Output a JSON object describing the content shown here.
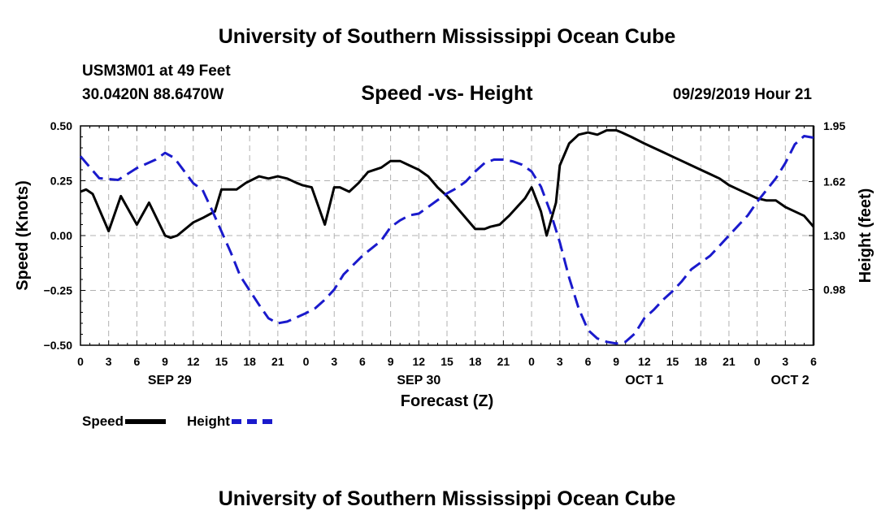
{
  "page": {
    "top_title": "University of Southern Mississippi Ocean Cube",
    "bottom_title": "University of Southern Mississippi Ocean Cube",
    "station_name": "USM3M01 at 49 Feet",
    "station_coords": "30.0420N 88.6470W",
    "chart_title": "Speed -vs- Height",
    "date_label": "09/29/2019 Hour 21"
  },
  "colors": {
    "speed": "#000000",
    "height": "#1a1acc",
    "grid": "#b0b0b0"
  },
  "chart_data": {
    "type": "line",
    "title": "Speed -vs- Height",
    "xlabel": "Forecast (Z)",
    "ylabel": "Speed (Knots)",
    "y2label": "Height (feet)",
    "x_unit": "hours since 09/29 00Z",
    "xlim": [
      0,
      78
    ],
    "ylim": [
      -0.5,
      0.5
    ],
    "y2lim": [
      0.65,
      1.95
    ],
    "yticks": [
      -0.5,
      -0.25,
      0,
      0.25,
      0.5
    ],
    "ytick_labels": [
      "−0.50",
      "−0.25",
      "0.00",
      "0.25",
      "0.50"
    ],
    "y2ticks": [
      0.98,
      1.3,
      1.62,
      1.95
    ],
    "y2tick_labels": [
      "0.98",
      "1.30",
      "1.62",
      "1.95"
    ],
    "xticks": [
      0,
      3,
      6,
      9,
      12,
      15,
      18,
      21,
      24,
      27,
      30,
      33,
      36,
      39,
      42,
      45,
      48,
      51,
      54,
      57,
      60,
      63,
      66,
      69,
      72,
      75,
      78
    ],
    "xtick_labels": [
      "0",
      "3",
      "6",
      "9",
      "12",
      "15",
      "18",
      "21",
      "0",
      "3",
      "6",
      "9",
      "12",
      "15",
      "18",
      "21",
      "0",
      "3",
      "6",
      "9",
      "12",
      "15",
      "18",
      "21",
      "0",
      "3",
      "6"
    ],
    "date_labels": [
      {
        "label": "SEP 29",
        "x": 9.5
      },
      {
        "label": "SEP 30",
        "x": 36
      },
      {
        "label": "OCT 1",
        "x": 60
      },
      {
        "label": "OCT 2",
        "x": 75.5
      }
    ],
    "grid": true,
    "legend": "bottom-left",
    "series": [
      {
        "name": "Speed",
        "axis": "left",
        "style": "solid",
        "x": [
          0,
          0.6,
          1.3,
          3,
          4.3,
          6,
          7.3,
          9,
          9.6,
          10.3,
          12,
          13,
          14.3,
          15,
          16.6,
          17.6,
          19,
          20,
          21,
          22,
          23,
          23.6,
          24.6,
          26,
          27,
          27.6,
          28.6,
          29.6,
          30.6,
          32,
          33,
          34,
          35,
          36,
          37,
          38,
          39,
          40,
          42,
          43,
          43.6,
          44.6,
          45.6,
          47.3,
          48,
          49,
          49.6,
          50.6,
          51,
          52,
          53,
          54,
          55,
          56,
          57,
          57.6,
          58.6,
          60,
          61,
          62,
          63,
          64,
          65,
          66,
          67,
          68,
          69,
          70,
          71,
          72,
          73,
          74,
          75,
          76,
          77,
          77.6,
          78
        ],
        "values": [
          0.2,
          0.21,
          0.19,
          0.02,
          0.18,
          0.05,
          0.15,
          0,
          -0.01,
          0,
          0.06,
          0.08,
          0.11,
          0.21,
          0.21,
          0.24,
          0.27,
          0.26,
          0.27,
          0.26,
          0.24,
          0.23,
          0.22,
          0.05,
          0.22,
          0.22,
          0.2,
          0.24,
          0.29,
          0.31,
          0.34,
          0.34,
          0.32,
          0.3,
          0.27,
          0.22,
          0.18,
          0.13,
          0.03,
          0.03,
          0.04,
          0.05,
          0.09,
          0.17,
          0.22,
          0.11,
          0,
          0.15,
          0.32,
          0.42,
          0.46,
          0.47,
          0.46,
          0.48,
          0.48,
          0.47,
          0.45,
          0.42,
          0.4,
          0.38,
          0.36,
          0.34,
          0.32,
          0.3,
          0.28,
          0.26,
          0.23,
          0.21,
          0.19,
          0.17,
          0.16,
          0.16,
          0.13,
          0.11,
          0.09,
          0.06,
          0.04
        ]
      },
      {
        "name": "Height",
        "axis": "right",
        "style": "dashed",
        "x": [
          0,
          2,
          4,
          6,
          8,
          9,
          10,
          12,
          13,
          14,
          16,
          17,
          19,
          20,
          21,
          22,
          24,
          25,
          26,
          27,
          28,
          30,
          32,
          33,
          34,
          35,
          36,
          37,
          38,
          39,
          40,
          41,
          42,
          43,
          44,
          45,
          46,
          47,
          48,
          49,
          50,
          51,
          52,
          53,
          54,
          55,
          56,
          57,
          58,
          59,
          60,
          61,
          62,
          63,
          64,
          65,
          66,
          67,
          68,
          69,
          70,
          71,
          72,
          73,
          74,
          75,
          76,
          77,
          78
        ],
        "values": [
          1.77,
          1.64,
          1.63,
          1.7,
          1.75,
          1.79,
          1.76,
          1.61,
          1.57,
          1.45,
          1.2,
          1.06,
          0.89,
          0.81,
          0.78,
          0.79,
          0.84,
          0.87,
          0.92,
          0.98,
          1.07,
          1.18,
          1.27,
          1.35,
          1.39,
          1.42,
          1.43,
          1.47,
          1.51,
          1.55,
          1.58,
          1.62,
          1.68,
          1.73,
          1.75,
          1.75,
          1.74,
          1.72,
          1.68,
          1.59,
          1.44,
          1.26,
          1.05,
          0.87,
          0.74,
          0.69,
          0.67,
          0.66,
          0.67,
          0.72,
          0.81,
          0.86,
          0.92,
          0.97,
          1.03,
          1.1,
          1.14,
          1.18,
          1.24,
          1.3,
          1.36,
          1.42,
          1.5,
          1.57,
          1.64,
          1.73,
          1.84,
          1.89,
          1.88
        ]
      }
    ]
  },
  "legend": {
    "speed_label": "Speed",
    "height_label": "Height"
  }
}
